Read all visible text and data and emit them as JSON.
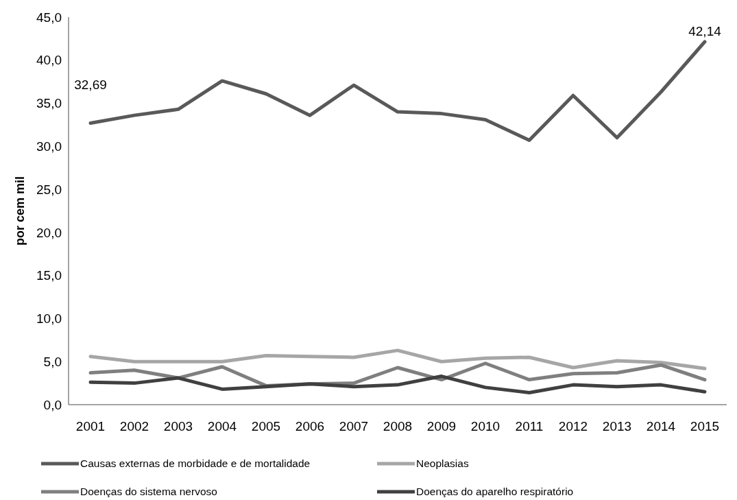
{
  "chart_data": {
    "type": "line",
    "ylabel": "por cem mil",
    "categories": [
      "2001",
      "2002",
      "2003",
      "2004",
      "2005",
      "2006",
      "2007",
      "2008",
      "2009",
      "2010",
      "2011",
      "2012",
      "2013",
      "2014",
      "2015"
    ],
    "series": [
      {
        "name": "Causas externas de morbidade e de mortalidade",
        "color": "#595959",
        "values": [
          32.69,
          33.6,
          34.3,
          37.6,
          36.1,
          33.6,
          37.1,
          34.0,
          33.8,
          33.1,
          30.7,
          35.9,
          31.0,
          36.3,
          42.14
        ]
      },
      {
        "name": "Neoplasias",
        "color": "#a6a6a6",
        "values": [
          5.6,
          5.0,
          5.0,
          5.0,
          5.7,
          5.6,
          5.5,
          6.3,
          5.0,
          5.4,
          5.5,
          4.3,
          5.1,
          4.9,
          4.2
        ]
      },
      {
        "name": "Doenças do sistema nervoso",
        "color": "#7f7f7f",
        "values": [
          3.7,
          4.0,
          3.1,
          4.4,
          2.2,
          2.4,
          2.5,
          4.3,
          2.9,
          4.8,
          2.9,
          3.6,
          3.7,
          4.6,
          2.9
        ]
      },
      {
        "name": "Doenças do aparelho respiratório",
        "color": "#404040",
        "values": [
          2.6,
          2.5,
          3.1,
          1.8,
          2.1,
          2.4,
          2.1,
          2.3,
          3.3,
          2.0,
          1.4,
          2.3,
          2.1,
          2.3,
          1.5
        ]
      }
    ],
    "ylim": [
      0,
      45
    ],
    "yticks": [
      {
        "value": 0,
        "label": "0,0"
      },
      {
        "value": 5,
        "label": "5,0"
      },
      {
        "value": 10,
        "label": "10,0"
      },
      {
        "value": 15,
        "label": "15,0"
      },
      {
        "value": 20,
        "label": "20,0"
      },
      {
        "value": 25,
        "label": "25,0"
      },
      {
        "value": 30,
        "label": "30,0"
      },
      {
        "value": 35,
        "label": "35,0"
      },
      {
        "value": 40,
        "label": "40,0"
      },
      {
        "value": 45,
        "label": "45,0"
      }
    ],
    "annotations": [
      {
        "text": "32,69",
        "x": "2001",
        "y": 32.69
      },
      {
        "text": "42,14",
        "x": "2015",
        "y": 42.14
      }
    ],
    "grid": false,
    "legend": "bottom",
    "marker": "none",
    "line_style": "solid"
  }
}
